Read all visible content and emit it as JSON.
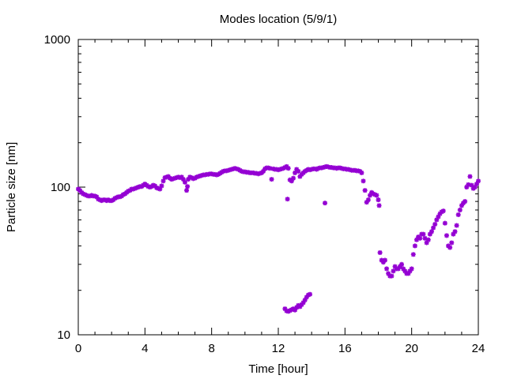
{
  "chart_data": {
    "type": "scatter",
    "title": "Modes location (5/9/1)",
    "xlabel": "Time [hour]",
    "ylabel": "Particle size [nm]",
    "xlim": [
      0,
      24
    ],
    "ylim": [
      10,
      1000
    ],
    "yscale": "log",
    "grid": false,
    "x_ticks": [
      "0",
      "4",
      "8",
      "12",
      "16",
      "20",
      "24"
    ],
    "y_ticks": [
      "10",
      "100",
      "1000"
    ],
    "marker_color": "#9400d3",
    "series": [
      {
        "points": [
          [
            0.0,
            97
          ],
          [
            0.1,
            95
          ],
          [
            0.2,
            92
          ],
          [
            0.3,
            90
          ],
          [
            0.4,
            89
          ],
          [
            0.5,
            88
          ],
          [
            0.6,
            87
          ],
          [
            0.7,
            87
          ],
          [
            0.8,
            88
          ],
          [
            0.9,
            87
          ],
          [
            1.0,
            87
          ],
          [
            1.1,
            86
          ],
          [
            1.2,
            83
          ],
          [
            1.3,
            82
          ],
          [
            1.4,
            81
          ],
          [
            1.5,
            82
          ],
          [
            1.6,
            82
          ],
          [
            1.7,
            81
          ],
          [
            1.8,
            82
          ],
          [
            1.9,
            81
          ],
          [
            2.0,
            81
          ],
          [
            2.1,
            82
          ],
          [
            2.2,
            84
          ],
          [
            2.3,
            85
          ],
          [
            2.4,
            86
          ],
          [
            2.5,
            86
          ],
          [
            2.6,
            87
          ],
          [
            2.7,
            89
          ],
          [
            2.8,
            90
          ],
          [
            2.9,
            92
          ],
          [
            3.0,
            94
          ],
          [
            3.1,
            95
          ],
          [
            3.2,
            97
          ],
          [
            3.3,
            97
          ],
          [
            3.4,
            98
          ],
          [
            3.5,
            99
          ],
          [
            3.6,
            100
          ],
          [
            3.7,
            101
          ],
          [
            3.8,
            101
          ],
          [
            3.9,
            103
          ],
          [
            4.0,
            105
          ],
          [
            4.1,
            103
          ],
          [
            4.2,
            101
          ],
          [
            4.3,
            100
          ],
          [
            4.4,
            101
          ],
          [
            4.5,
            103
          ],
          [
            4.6,
            102
          ],
          [
            4.7,
            99
          ],
          [
            4.8,
            98
          ],
          [
            4.9,
            97
          ],
          [
            5.0,
            102
          ],
          [
            5.1,
            110
          ],
          [
            5.2,
            116
          ],
          [
            5.3,
            117
          ],
          [
            5.4,
            118
          ],
          [
            5.5,
            115
          ],
          [
            5.6,
            113
          ],
          [
            5.7,
            114
          ],
          [
            5.8,
            115
          ],
          [
            5.9,
            116
          ],
          [
            6.0,
            117
          ],
          [
            6.1,
            116
          ],
          [
            6.2,
            117
          ],
          [
            6.3,
            113
          ],
          [
            6.4,
            108
          ],
          [
            6.5,
            95
          ],
          [
            6.55,
            101
          ],
          [
            6.6,
            113
          ],
          [
            6.7,
            117
          ],
          [
            6.8,
            116
          ],
          [
            6.9,
            114
          ],
          [
            7.0,
            115
          ],
          [
            7.1,
            117
          ],
          [
            7.2,
            118
          ],
          [
            7.3,
            119
          ],
          [
            7.4,
            120
          ],
          [
            7.5,
            121
          ],
          [
            7.6,
            121
          ],
          [
            7.7,
            122
          ],
          [
            7.8,
            122
          ],
          [
            7.9,
            123
          ],
          [
            8.0,
            123
          ],
          [
            8.1,
            122
          ],
          [
            8.2,
            122
          ],
          [
            8.3,
            121
          ],
          [
            8.4,
            122
          ],
          [
            8.5,
            124
          ],
          [
            8.6,
            126
          ],
          [
            8.7,
            128
          ],
          [
            8.8,
            129
          ],
          [
            8.9,
            129
          ],
          [
            9.0,
            130
          ],
          [
            9.1,
            131
          ],
          [
            9.2,
            132
          ],
          [
            9.3,
            133
          ],
          [
            9.4,
            134
          ],
          [
            9.5,
            133
          ],
          [
            9.6,
            132
          ],
          [
            9.7,
            130
          ],
          [
            9.8,
            128
          ],
          [
            9.9,
            127
          ],
          [
            10.0,
            127
          ],
          [
            10.1,
            126
          ],
          [
            10.2,
            126
          ],
          [
            10.3,
            125
          ],
          [
            10.4,
            125
          ],
          [
            10.5,
            125
          ],
          [
            10.6,
            124
          ],
          [
            10.7,
            124
          ],
          [
            10.8,
            123
          ],
          [
            10.9,
            124
          ],
          [
            11.0,
            125
          ],
          [
            11.1,
            128
          ],
          [
            11.2,
            133
          ],
          [
            11.3,
            135
          ],
          [
            11.4,
            135
          ],
          [
            11.5,
            134
          ],
          [
            11.6,
            113
          ],
          [
            11.7,
            133
          ],
          [
            11.8,
            132
          ],
          [
            11.9,
            132
          ],
          [
            12.0,
            131
          ],
          [
            12.1,
            132
          ],
          [
            12.2,
            133
          ],
          [
            12.3,
            134
          ],
          [
            12.4,
            136
          ],
          [
            12.5,
            138
          ],
          [
            12.6,
            134
          ],
          [
            12.7,
            112
          ],
          [
            12.8,
            110
          ],
          [
            12.9,
            115
          ],
          [
            13.0,
            125
          ],
          [
            13.1,
            132
          ],
          [
            13.2,
            128
          ],
          [
            13.3,
            118
          ],
          [
            13.4,
            122
          ],
          [
            13.5,
            125
          ],
          [
            13.6,
            128
          ],
          [
            13.7,
            130
          ],
          [
            13.8,
            132
          ],
          [
            13.9,
            131
          ],
          [
            14.0,
            132
          ],
          [
            14.1,
            133
          ],
          [
            14.2,
            133
          ],
          [
            14.3,
            132
          ],
          [
            14.4,
            134
          ],
          [
            14.5,
            135
          ],
          [
            14.6,
            135
          ],
          [
            14.7,
            136
          ],
          [
            14.8,
            137
          ],
          [
            14.9,
            138
          ],
          [
            15.0,
            137
          ],
          [
            15.1,
            136
          ],
          [
            15.2,
            136
          ],
          [
            15.3,
            135
          ],
          [
            15.4,
            135
          ],
          [
            15.5,
            134
          ],
          [
            15.6,
            135
          ],
          [
            15.7,
            135
          ],
          [
            15.8,
            134
          ],
          [
            15.9,
            133
          ],
          [
            16.0,
            133
          ],
          [
            16.1,
            132
          ],
          [
            16.2,
            132
          ],
          [
            16.3,
            131
          ],
          [
            16.4,
            130
          ],
          [
            16.5,
            130
          ],
          [
            16.6,
            130
          ],
          [
            16.7,
            129
          ],
          [
            16.8,
            129
          ],
          [
            16.9,
            128
          ],
          [
            17.0,
            125
          ],
          [
            17.1,
            110
          ],
          [
            17.2,
            95
          ],
          [
            17.3,
            79
          ],
          [
            17.4,
            82
          ],
          [
            17.5,
            88
          ],
          [
            17.6,
            92
          ],
          [
            17.7,
            90
          ],
          [
            17.8,
            89
          ],
          [
            17.9,
            88
          ],
          [
            18.0,
            82
          ],
          [
            18.05,
            75
          ],
          [
            18.1,
            36
          ],
          [
            18.2,
            32
          ],
          [
            18.3,
            31
          ],
          [
            18.4,
            32
          ],
          [
            18.5,
            28
          ],
          [
            18.6,
            26
          ],
          [
            18.7,
            25
          ],
          [
            18.8,
            25
          ],
          [
            18.9,
            27
          ],
          [
            19.0,
            29
          ],
          [
            19.1,
            28
          ],
          [
            19.2,
            28
          ],
          [
            19.3,
            29
          ],
          [
            19.4,
            30
          ],
          [
            19.5,
            28
          ],
          [
            19.6,
            27
          ],
          [
            19.7,
            26
          ],
          [
            19.8,
            26
          ],
          [
            19.9,
            27
          ],
          [
            20.0,
            28
          ],
          [
            20.1,
            35
          ],
          [
            20.2,
            40
          ],
          [
            20.3,
            44
          ],
          [
            20.4,
            46
          ],
          [
            20.5,
            45
          ],
          [
            20.6,
            48
          ],
          [
            20.7,
            48
          ],
          [
            20.8,
            45
          ],
          [
            20.9,
            42
          ],
          [
            21.0,
            44
          ],
          [
            21.1,
            48
          ],
          [
            21.2,
            50
          ],
          [
            21.3,
            53
          ],
          [
            21.4,
            56
          ],
          [
            21.5,
            60
          ],
          [
            21.6,
            63
          ],
          [
            21.7,
            66
          ],
          [
            21.8,
            68
          ],
          [
            21.9,
            69
          ],
          [
            22.0,
            57
          ],
          [
            22.1,
            47
          ],
          [
            22.2,
            40
          ],
          [
            22.3,
            39
          ],
          [
            22.4,
            42
          ],
          [
            22.5,
            48
          ],
          [
            22.6,
            50
          ],
          [
            22.7,
            55
          ],
          [
            22.8,
            65
          ],
          [
            22.9,
            70
          ],
          [
            23.0,
            75
          ],
          [
            23.1,
            78
          ],
          [
            23.2,
            80
          ],
          [
            23.3,
            100
          ],
          [
            23.4,
            104
          ],
          [
            23.5,
            118
          ],
          [
            23.6,
            103
          ],
          [
            23.7,
            98
          ],
          [
            23.8,
            100
          ],
          [
            23.9,
            105
          ],
          [
            24.0,
            110
          ],
          [
            12.4,
            15
          ],
          [
            12.5,
            14.5
          ],
          [
            12.6,
            14.4
          ],
          [
            12.7,
            14.6
          ],
          [
            12.8,
            14.8
          ],
          [
            12.9,
            15
          ],
          [
            13.0,
            14.7
          ],
          [
            13.1,
            15.3
          ],
          [
            13.2,
            15.8
          ],
          [
            13.3,
            15.5
          ],
          [
            13.4,
            16
          ],
          [
            13.5,
            16.5
          ],
          [
            13.6,
            17.2
          ],
          [
            13.7,
            18
          ],
          [
            13.8,
            18.6
          ],
          [
            13.9,
            18.8
          ],
          [
            12.55,
            83
          ],
          [
            14.8,
            78
          ]
        ]
      }
    ]
  }
}
